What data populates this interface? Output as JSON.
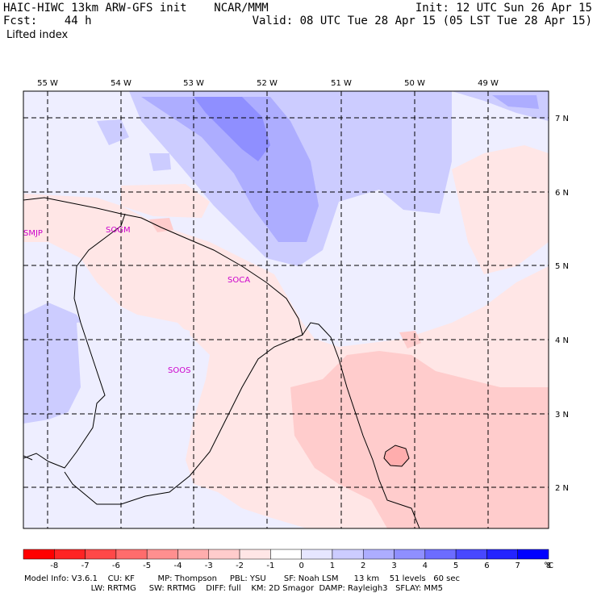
{
  "header": {
    "line1_left": "HAIC-HIWC 13km ARW-GFS init    NCAR/MMM",
    "line1_right": "Init: 12 UTC Sun 26 Apr 15",
    "line2_left": "Fcst:    44 h",
    "line2_right": "Valid: 08 UTC Tue 28 Apr 15 (05 LST Tue 28 Apr 15)",
    "line3_left": "Lifted index"
  },
  "longitude_labels": [
    "55 W",
    "54 W",
    "53 W",
    "52 W",
    "51 W",
    "50 W",
    "49 W"
  ],
  "latitude_labels": [
    "7 N",
    "6 N",
    "5 N",
    "4 N",
    "3 N",
    "2 N"
  ],
  "stations": [
    "SMJP",
    "SOGM",
    "SOCA",
    "SOOS"
  ],
  "colorbar": {
    "ticks": [
      "-8",
      "-7",
      "-6",
      "-5",
      "-4",
      "-3",
      "-2",
      "-1",
      "0",
      "1",
      "2",
      "3",
      "4",
      "5",
      "6",
      "7",
      "8"
    ],
    "unit": "°C",
    "colors": [
      "#ff0000",
      "#ff2424",
      "#ff4848",
      "#ff6c6c",
      "#ff8f8f",
      "#ffadad",
      "#ffcccc",
      "#ffe6e6",
      "#ffffff",
      "#e6e6ff",
      "#ccccff",
      "#adadff",
      "#8f8fff",
      "#6c6cff",
      "#4848ff",
      "#2424ff",
      "#0000ff"
    ]
  },
  "footer": {
    "line1": "Model Info: V3.6.1    CU: KF         MP: Thompson     PBL: YSU       SF: Noah LSM      13 km    51 levels   60 sec",
    "line2": "                          LW: RRTMG     SW: RRTMG    DIFF: full    KM: 2D Smagor  DAMP: Rayleigh3   SFLAY: MM5"
  },
  "colors": {
    "coast": "#000000",
    "station_label": "#cc00cc",
    "grid": "#000000"
  }
}
